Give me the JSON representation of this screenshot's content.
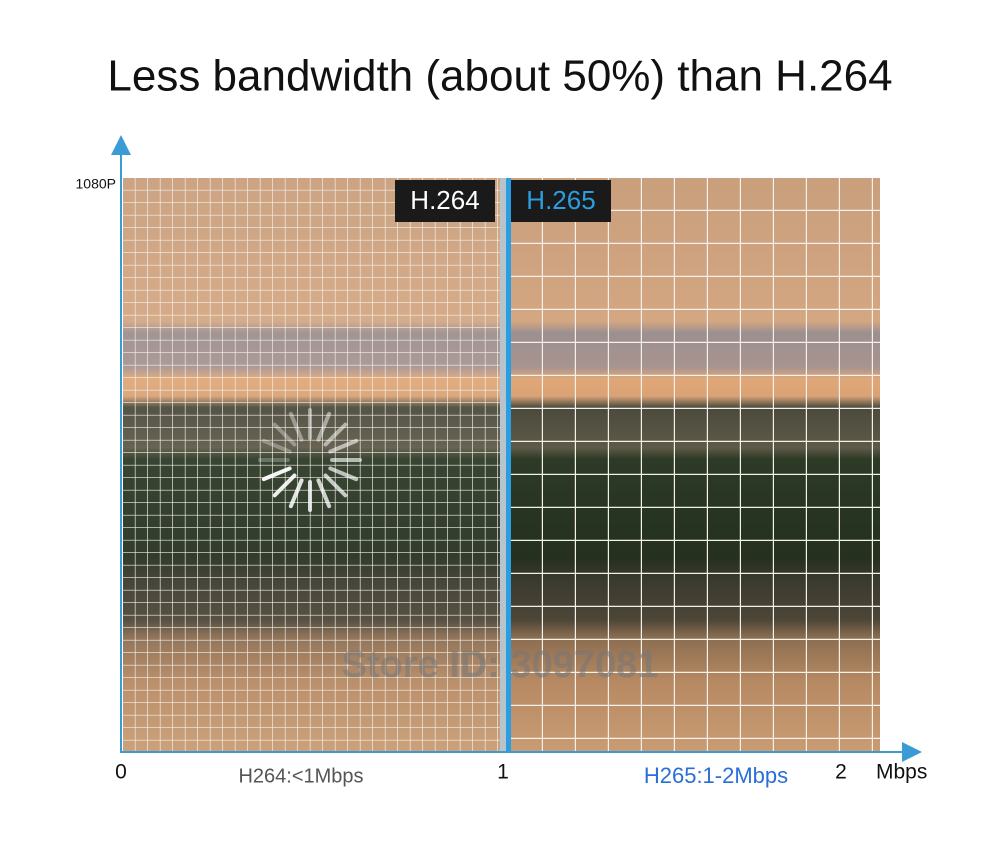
{
  "title": "Less bandwidth (about 50%) than H.264",
  "y_axis_label": "1080P",
  "panels": [
    {
      "label": "H.264",
      "bitrate": "H264:<1Mbps"
    },
    {
      "label": "H.265",
      "bitrate": "H265:1-2Mbps"
    }
  ],
  "x_axis": {
    "ticks": [
      "0",
      "1",
      "2"
    ],
    "unit": "Mbps"
  },
  "watermark": "Store ID: 3097081"
}
